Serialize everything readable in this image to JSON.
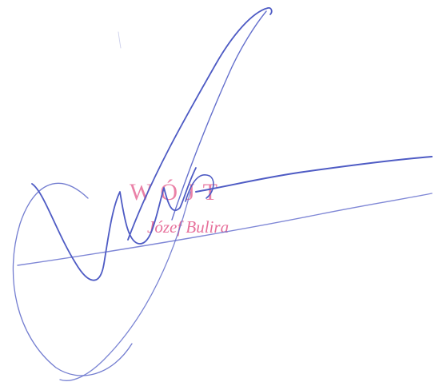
{
  "stamp": {
    "title": "WÓJT",
    "name": "Józef Bulira",
    "color": "#e3588a"
  },
  "signature": {
    "color": "#4e5bc4"
  }
}
